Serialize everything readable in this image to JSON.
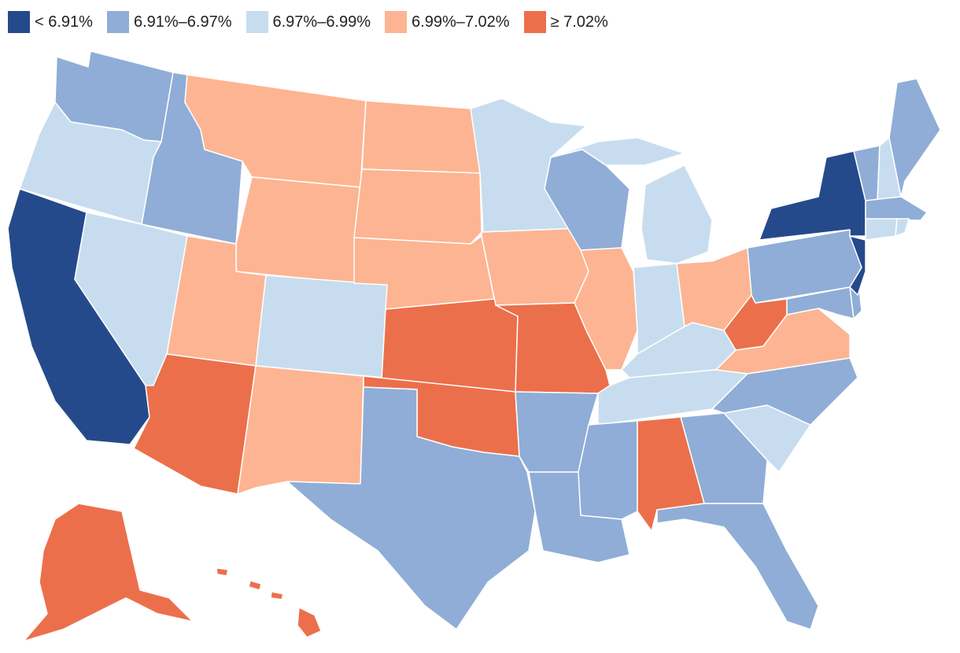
{
  "legend": {
    "bins": [
      {
        "label": "< 6.91%",
        "color": "#254a8c"
      },
      {
        "label": "6.91%–6.97%",
        "color": "#8fadd6"
      },
      {
        "label": "6.97%–6.99%",
        "color": "#c7ddef"
      },
      {
        "label": "6.99%–7.02%",
        "color": "#fdb492"
      },
      {
        "label": "≥ 7.02%",
        "color": "#ec6f4b"
      }
    ]
  },
  "states": [
    {
      "id": "WA",
      "bin": 1
    },
    {
      "id": "OR",
      "bin": 2
    },
    {
      "id": "CA",
      "bin": 0
    },
    {
      "id": "ID",
      "bin": 1
    },
    {
      "id": "NV",
      "bin": 2
    },
    {
      "id": "MT",
      "bin": 3
    },
    {
      "id": "WY",
      "bin": 3
    },
    {
      "id": "UT",
      "bin": 3
    },
    {
      "id": "AZ",
      "bin": 4
    },
    {
      "id": "CO",
      "bin": 2
    },
    {
      "id": "NM",
      "bin": 3
    },
    {
      "id": "ND",
      "bin": 3
    },
    {
      "id": "SD",
      "bin": 3
    },
    {
      "id": "NE",
      "bin": 3
    },
    {
      "id": "KS",
      "bin": 4
    },
    {
      "id": "OK",
      "bin": 4
    },
    {
      "id": "TX",
      "bin": 1
    },
    {
      "id": "MN",
      "bin": 2
    },
    {
      "id": "IA",
      "bin": 3
    },
    {
      "id": "MO",
      "bin": 4
    },
    {
      "id": "AR",
      "bin": 1
    },
    {
      "id": "LA",
      "bin": 1
    },
    {
      "id": "WI",
      "bin": 1
    },
    {
      "id": "IL",
      "bin": 3
    },
    {
      "id": "MI",
      "bin": 2
    },
    {
      "id": "IN",
      "bin": 2
    },
    {
      "id": "OH",
      "bin": 3
    },
    {
      "id": "KY",
      "bin": 2
    },
    {
      "id": "TN",
      "bin": 2
    },
    {
      "id": "MS",
      "bin": 1
    },
    {
      "id": "AL",
      "bin": 4
    },
    {
      "id": "GA",
      "bin": 1
    },
    {
      "id": "FL",
      "bin": 1
    },
    {
      "id": "SC",
      "bin": 2
    },
    {
      "id": "NC",
      "bin": 1
    },
    {
      "id": "VA",
      "bin": 3
    },
    {
      "id": "WV",
      "bin": 4
    },
    {
      "id": "PA",
      "bin": 1
    },
    {
      "id": "NY",
      "bin": 0
    },
    {
      "id": "NJ",
      "bin": 0
    },
    {
      "id": "MD",
      "bin": 1
    },
    {
      "id": "DE",
      "bin": 1
    },
    {
      "id": "VT",
      "bin": 1
    },
    {
      "id": "NH",
      "bin": 2
    },
    {
      "id": "ME",
      "bin": 1
    },
    {
      "id": "MA",
      "bin": 1
    },
    {
      "id": "CT",
      "bin": 2
    },
    {
      "id": "RI",
      "bin": 2
    },
    {
      "id": "AK",
      "bin": 4
    },
    {
      "id": "HI",
      "bin": 4
    }
  ]
}
